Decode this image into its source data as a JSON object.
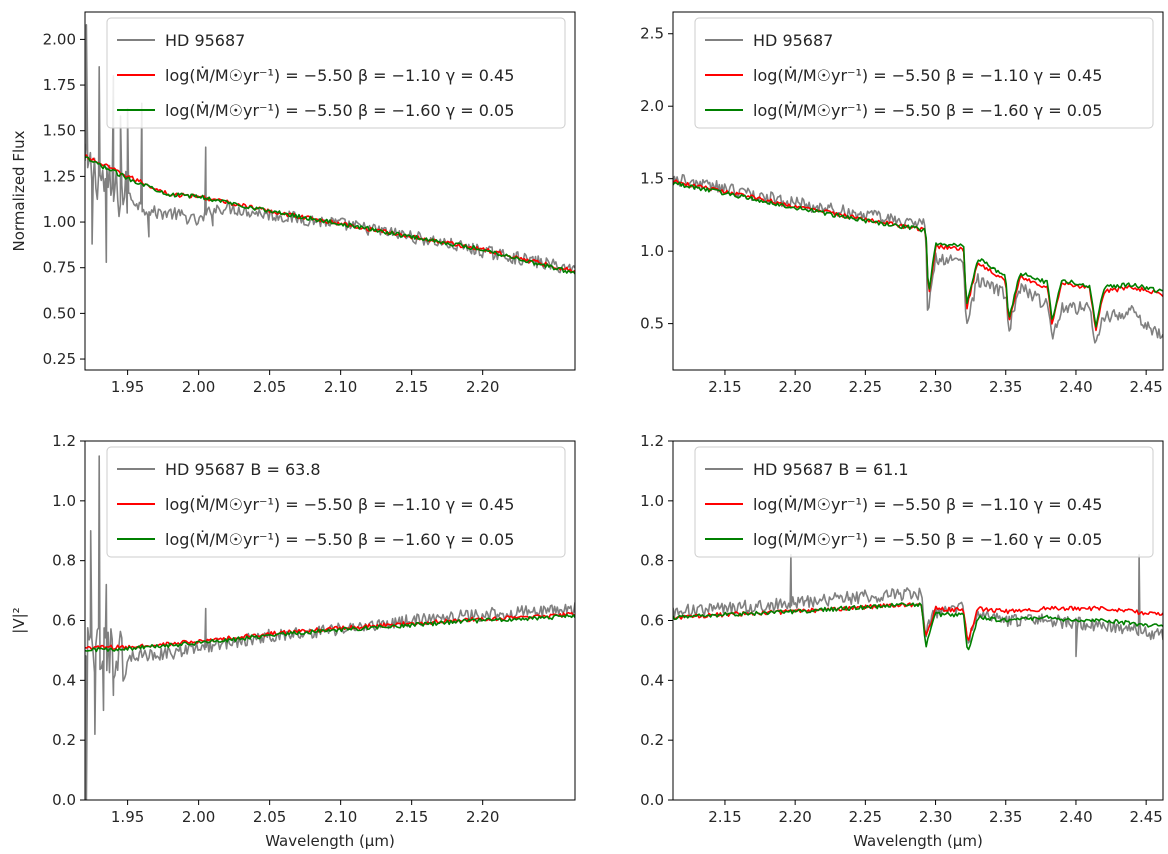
{
  "chart_data": [
    {
      "type": "line",
      "panel": "top-left",
      "title": "",
      "xlabel": "",
      "ylabel": "Normalized Flux",
      "xlim": [
        1.92,
        2.265
      ],
      "ylim": [
        0.19,
        2.15
      ],
      "xticks": [
        1.95,
        2.0,
        2.05,
        2.1,
        2.15,
        2.2
      ],
      "xtick_labels": [
        "1.95",
        "2.00",
        "2.05",
        "2.10",
        "2.15",
        "2.20"
      ],
      "yticks": [
        0.25,
        0.5,
        0.75,
        1.0,
        1.25,
        1.5,
        1.75,
        2.0
      ],
      "ytick_labels": [
        "0.25",
        "0.50",
        "0.75",
        "1.00",
        "1.25",
        "1.50",
        "1.75",
        "2.00"
      ],
      "legend_position": "top-right",
      "legend": [
        {
          "text": "HD 95687",
          "color": "#808080"
        },
        {
          "text": "log(Ṁ/M☉yr⁻¹) = −5.50 β = −1.10 γ = 0.45",
          "color": "#ff0000"
        },
        {
          "text": "log(Ṁ/M☉yr⁻¹) = −5.50 β = −1.60 γ = 0.05",
          "color": "#008000"
        }
      ],
      "series": [
        {
          "name": "HD 95687",
          "color": "#808080",
          "x": [
            1.92,
            1.93,
            1.94,
            1.95,
            1.96,
            1.97,
            1.98,
            1.99,
            2.0,
            2.01,
            2.02,
            2.05,
            2.1,
            2.15,
            2.2,
            2.265
          ],
          "y": [
            1.3,
            1.25,
            1.15,
            1.15,
            1.08,
            1.05,
            1.05,
            1.03,
            1.0,
            1.07,
            1.08,
            1.04,
            0.99,
            0.92,
            0.84,
            0.74
          ],
          "spikes": [
            [
              1.921,
              2.08
            ],
            [
              1.925,
              0.88
            ],
            [
              1.93,
              1.85
            ],
            [
              1.935,
              0.78
            ],
            [
              1.94,
              1.8
            ],
            [
              1.945,
              1.58
            ],
            [
              1.95,
              1.62
            ],
            [
              1.96,
              1.65
            ],
            [
              1.965,
              0.92
            ],
            [
              2.005,
              1.41
            ],
            [
              2.01,
              0.98
            ]
          ]
        },
        {
          "name": "log(Ṁ/M☉yr⁻¹) = −5.50 β = −1.10 γ = 0.45",
          "color": "#ff0000",
          "x": [
            1.92,
            1.95,
            1.98,
            2.0,
            2.05,
            2.1,
            2.15,
            2.2,
            2.265
          ],
          "y": [
            1.36,
            1.25,
            1.15,
            1.14,
            1.06,
            0.99,
            0.92,
            0.85,
            0.73
          ]
        },
        {
          "name": "log(Ṁ/M☉yr⁻¹) = −5.50 β = −1.60 γ = 0.05",
          "color": "#008000",
          "x": [
            1.92,
            1.95,
            1.98,
            2.0,
            2.05,
            2.1,
            2.15,
            2.2,
            2.265
          ],
          "y": [
            1.35,
            1.24,
            1.15,
            1.14,
            1.06,
            0.99,
            0.92,
            0.85,
            0.72
          ]
        }
      ]
    },
    {
      "type": "line",
      "panel": "top-right",
      "title": "",
      "xlabel": "",
      "ylabel": "",
      "xlim": [
        2.113,
        2.462
      ],
      "ylim": [
        0.18,
        2.65
      ],
      "xticks": [
        2.15,
        2.2,
        2.25,
        2.3,
        2.35,
        2.4,
        2.45
      ],
      "xtick_labels": [
        "2.15",
        "2.20",
        "2.25",
        "2.30",
        "2.35",
        "2.40",
        "2.45"
      ],
      "yticks": [
        0.5,
        1.0,
        1.5,
        2.0,
        2.5
      ],
      "ytick_labels": [
        "0.5",
        "1.0",
        "1.5",
        "2.0",
        "2.5"
      ],
      "legend_position": "top-right",
      "legend": [
        {
          "text": "HD 95687",
          "color": "#808080"
        },
        {
          "text": "log(Ṁ/M☉yr⁻¹) = −5.50 β = −1.10 γ = 0.45",
          "color": "#ff0000"
        },
        {
          "text": "log(Ṁ/M☉yr⁻¹) = −5.50 β = −1.60 γ = 0.05",
          "color": "#008000"
        }
      ],
      "series": [
        {
          "name": "HD 95687",
          "color": "#808080",
          "x": [
            2.113,
            2.15,
            2.2,
            2.25,
            2.28,
            2.293,
            2.294,
            2.3,
            2.32,
            2.322,
            2.33,
            2.35,
            2.352,
            2.36,
            2.38,
            2.383,
            2.39,
            2.41,
            2.414,
            2.42,
            2.44,
            2.462
          ],
          "y": [
            1.5,
            1.43,
            1.33,
            1.25,
            1.2,
            1.18,
            0.55,
            0.95,
            0.92,
            0.5,
            0.8,
            0.7,
            0.45,
            0.75,
            0.62,
            0.42,
            0.62,
            0.6,
            0.35,
            0.55,
            0.58,
            0.4
          ]
        },
        {
          "name": "log(Ṁ/M☉yr⁻¹) = −5.50 β = −1.10 γ = 0.45",
          "color": "#ff0000",
          "x": [
            2.113,
            2.15,
            2.2,
            2.25,
            2.29,
            2.293,
            2.295,
            2.3,
            2.32,
            2.322,
            2.33,
            2.35,
            2.352,
            2.36,
            2.38,
            2.383,
            2.39,
            2.41,
            2.414,
            2.42,
            2.44,
            2.462
          ],
          "y": [
            1.48,
            1.41,
            1.31,
            1.22,
            1.15,
            1.15,
            0.68,
            1.03,
            1.02,
            0.6,
            0.92,
            0.8,
            0.5,
            0.82,
            0.75,
            0.5,
            0.78,
            0.74,
            0.45,
            0.72,
            0.75,
            0.7
          ]
        },
        {
          "name": "log(Ṁ/M☉yr⁻¹) = −5.50 β = −1.60 γ = 0.05",
          "color": "#008000",
          "x": [
            2.113,
            2.15,
            2.2,
            2.25,
            2.29,
            2.293,
            2.295,
            2.3,
            2.32,
            2.322,
            2.33,
            2.35,
            2.352,
            2.36,
            2.38,
            2.383,
            2.39,
            2.41,
            2.414,
            2.42,
            2.44,
            2.462
          ],
          "y": [
            1.47,
            1.4,
            1.3,
            1.21,
            1.15,
            1.15,
            0.7,
            1.05,
            1.04,
            0.62,
            0.95,
            0.82,
            0.52,
            0.85,
            0.78,
            0.52,
            0.8,
            0.76,
            0.47,
            0.75,
            0.77,
            0.72
          ]
        }
      ]
    },
    {
      "type": "line",
      "panel": "bottom-left",
      "title": "",
      "xlabel": "Wavelength (μm)",
      "ylabel": "|V|²",
      "xlim": [
        1.92,
        2.265
      ],
      "ylim": [
        0.0,
        1.2
      ],
      "xticks": [
        1.95,
        2.0,
        2.05,
        2.1,
        2.15,
        2.2
      ],
      "xtick_labels": [
        "1.95",
        "2.00",
        "2.05",
        "2.10",
        "2.15",
        "2.20"
      ],
      "yticks": [
        0.0,
        0.2,
        0.4,
        0.6,
        0.8,
        1.0,
        1.2
      ],
      "ytick_labels": [
        "0.0",
        "0.2",
        "0.4",
        "0.6",
        "0.8",
        "1.0",
        "1.2"
      ],
      "legend_position": "top-right",
      "legend": [
        {
          "text": "HD 95687 B = 63.8",
          "color": "#808080"
        },
        {
          "text": "log(Ṁ/M☉yr⁻¹) = −5.50 β = −1.10 γ = 0.45",
          "color": "#ff0000"
        },
        {
          "text": "log(Ṁ/M☉yr⁻¹) = −5.50 β = −1.60 γ = 0.05",
          "color": "#008000"
        }
      ],
      "series": [
        {
          "name": "HD 95687 B = 63.8",
          "color": "#808080",
          "x": [
            1.92,
            1.95,
            1.98,
            2.0,
            2.05,
            2.1,
            2.15,
            2.2,
            2.265
          ],
          "y": [
            0.5,
            0.48,
            0.49,
            0.51,
            0.55,
            0.57,
            0.6,
            0.62,
            0.64
          ],
          "spikes": [
            [
              1.921,
              0.0
            ],
            [
              1.924,
              0.9
            ],
            [
              1.927,
              0.22
            ],
            [
              1.93,
              1.15
            ],
            [
              1.933,
              0.3
            ],
            [
              1.935,
              0.72
            ],
            [
              1.94,
              0.35
            ],
            [
              2.005,
              0.64
            ]
          ]
        },
        {
          "name": "log(Ṁ/M☉yr⁻¹) = −5.50 β = −1.10 γ = 0.45",
          "color": "#ff0000",
          "x": [
            1.92,
            1.95,
            2.0,
            2.05,
            2.1,
            2.15,
            2.2,
            2.265
          ],
          "y": [
            0.51,
            0.51,
            0.53,
            0.555,
            0.575,
            0.59,
            0.605,
            0.62
          ]
        },
        {
          "name": "log(Ṁ/M☉yr⁻¹) = −5.50 β = −1.60 γ = 0.05",
          "color": "#008000",
          "x": [
            1.92,
            1.95,
            2.0,
            2.05,
            2.1,
            2.15,
            2.2,
            2.265
          ],
          "y": [
            0.5,
            0.505,
            0.525,
            0.55,
            0.57,
            0.585,
            0.6,
            0.615
          ]
        }
      ]
    },
    {
      "type": "line",
      "panel": "bottom-right",
      "title": "",
      "xlabel": "Wavelength (μm)",
      "ylabel": "",
      "xlim": [
        2.113,
        2.462
      ],
      "ylim": [
        0.0,
        1.2
      ],
      "xticks": [
        2.15,
        2.2,
        2.25,
        2.3,
        2.35,
        2.4,
        2.45
      ],
      "xtick_labels": [
        "2.15",
        "2.20",
        "2.25",
        "2.30",
        "2.35",
        "2.40",
        "2.45"
      ],
      "yticks": [
        0.0,
        0.2,
        0.4,
        0.6,
        0.8,
        1.0,
        1.2
      ],
      "ytick_labels": [
        "0.0",
        "0.2",
        "0.4",
        "0.6",
        "0.8",
        "1.0",
        "1.2"
      ],
      "legend_position": "top-right",
      "legend": [
        {
          "text": "HD 95687 B = 61.1",
          "color": "#808080"
        },
        {
          "text": "log(Ṁ/M☉yr⁻¹) = −5.50 β = −1.10 γ = 0.45",
          "color": "#ff0000"
        },
        {
          "text": "log(Ṁ/M☉yr⁻¹) = −5.50 β = −1.60 γ = 0.05",
          "color": "#008000"
        }
      ],
      "series": [
        {
          "name": "HD 95687 B = 61.1",
          "color": "#808080",
          "x": [
            2.113,
            2.15,
            2.2,
            2.25,
            2.29,
            2.293,
            2.3,
            2.32,
            2.323,
            2.33,
            2.35,
            2.38,
            2.4,
            2.42,
            2.44,
            2.462
          ],
          "y": [
            0.63,
            0.64,
            0.66,
            0.68,
            0.69,
            0.56,
            0.63,
            0.64,
            0.53,
            0.62,
            0.6,
            0.6,
            0.59,
            0.58,
            0.57,
            0.55
          ],
          "spikes": [
            [
              2.197,
              0.82
            ],
            [
              2.445,
              0.82
            ],
            [
              2.4,
              0.48
            ]
          ]
        },
        {
          "name": "log(Ṁ/M☉yr⁻¹) = −5.50 β = −1.10 γ = 0.45",
          "color": "#ff0000",
          "x": [
            2.113,
            2.15,
            2.2,
            2.25,
            2.29,
            2.293,
            2.3,
            2.32,
            2.323,
            2.33,
            2.35,
            2.38,
            2.4,
            2.42,
            2.44,
            2.462
          ],
          "y": [
            0.61,
            0.62,
            0.63,
            0.645,
            0.655,
            0.54,
            0.64,
            0.635,
            0.52,
            0.64,
            0.63,
            0.64,
            0.64,
            0.64,
            0.63,
            0.62
          ]
        },
        {
          "name": "log(Ṁ/M☉yr⁻¹) = −5.50 β = −1.60 γ = 0.05",
          "color": "#008000",
          "x": [
            2.113,
            2.15,
            2.2,
            2.25,
            2.29,
            2.293,
            2.3,
            2.32,
            2.323,
            2.33,
            2.35,
            2.38,
            2.4,
            2.42,
            2.44,
            2.462
          ],
          "y": [
            0.61,
            0.62,
            0.63,
            0.645,
            0.655,
            0.51,
            0.62,
            0.62,
            0.49,
            0.61,
            0.6,
            0.61,
            0.6,
            0.6,
            0.59,
            0.58
          ]
        }
      ]
    }
  ]
}
